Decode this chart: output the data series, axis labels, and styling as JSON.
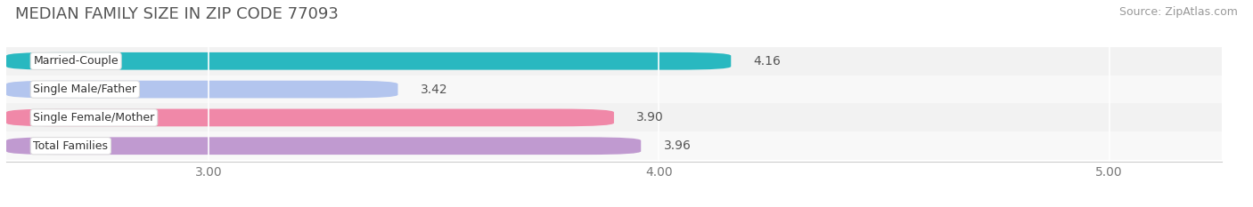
{
  "title": "MEDIAN FAMILY SIZE IN ZIP CODE 77093",
  "source": "Source: ZipAtlas.com",
  "categories": [
    "Married-Couple",
    "Single Male/Father",
    "Single Female/Mother",
    "Total Families"
  ],
  "values": [
    4.16,
    3.42,
    3.9,
    3.96
  ],
  "bar_colors": [
    "#29b8c0",
    "#b3c5ee",
    "#f088a8",
    "#c09ad0"
  ],
  "xlim_min": 2.55,
  "xlim_max": 5.25,
  "xticks": [
    3.0,
    4.0,
    5.0
  ],
  "xtick_labels": [
    "3.00",
    "4.00",
    "5.00"
  ],
  "bar_height": 0.62,
  "background_color": "#ffffff",
  "row_bg_colors": [
    "#f2f2f2",
    "#f8f8f8",
    "#f2f2f2",
    "#f8f8f8"
  ],
  "title_fontsize": 13,
  "source_fontsize": 9,
  "tick_fontsize": 10,
  "value_fontsize": 10,
  "label_fontsize": 9
}
